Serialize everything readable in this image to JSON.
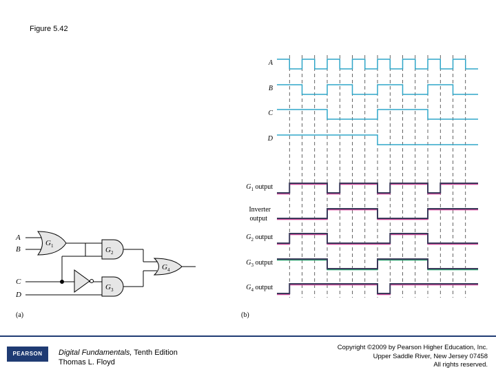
{
  "figure": {
    "title": "Figure 5.42"
  },
  "circuit": {
    "panel_label": "(a)",
    "inputs": [
      "A",
      "B",
      "C",
      "D"
    ],
    "gates": [
      "G",
      "G",
      "G",
      "G"
    ],
    "gate_subs": [
      "1",
      "2",
      "3",
      "4"
    ]
  },
  "timing": {
    "panel_label": "(b)",
    "inputs": [
      "A",
      "B",
      "C",
      "D"
    ],
    "outputs": [
      {
        "pre": "G",
        "sub": "1",
        "post": " output"
      },
      {
        "pre": "Inverter",
        "sub": "",
        "post": ""
      },
      {
        "pre": "G",
        "sub": "2",
        "post": " output"
      },
      {
        "pre": "G",
        "sub": "3",
        "post": " output"
      },
      {
        "pre": "G",
        "sub": "4",
        "post": " output"
      }
    ],
    "inverter_line2": "output",
    "num_periods": 16,
    "waveforms": {
      "A": [
        1,
        0,
        1,
        0,
        1,
        0,
        1,
        0,
        1,
        0,
        1,
        0,
        1,
        0,
        1,
        0
      ],
      "B": [
        1,
        1,
        0,
        0,
        1,
        1,
        0,
        0,
        1,
        1,
        0,
        0,
        1,
        1,
        0,
        0
      ],
      "C": [
        1,
        1,
        1,
        1,
        0,
        0,
        0,
        0,
        1,
        1,
        1,
        1,
        0,
        0,
        0,
        0
      ],
      "D": [
        1,
        1,
        1,
        1,
        1,
        1,
        1,
        1,
        0,
        0,
        0,
        0,
        0,
        0,
        0,
        0
      ],
      "G1": [
        0,
        1,
        1,
        1,
        0,
        1,
        1,
        1,
        0,
        1,
        1,
        1,
        0,
        1,
        1,
        1
      ],
      "INV": [
        0,
        0,
        0,
        0,
        1,
        1,
        1,
        1,
        0,
        0,
        0,
        0,
        1,
        1,
        1,
        1
      ],
      "G2": [
        0,
        1,
        1,
        1,
        0,
        0,
        0,
        0,
        0,
        1,
        1,
        1,
        0,
        0,
        0,
        0
      ],
      "G3": [
        1,
        1,
        1,
        1,
        0,
        0,
        0,
        0,
        1,
        1,
        1,
        1,
        0,
        0,
        0,
        0
      ],
      "G4": [
        0,
        1,
        1,
        1,
        1,
        1,
        1,
        1,
        0,
        1,
        1,
        1,
        1,
        1,
        1,
        1
      ]
    },
    "colors": {
      "input": "#2fa6c8",
      "output_dark": "#3a3a5a",
      "output_pink": "#d04a9c",
      "output_green": "#2fa070",
      "gate_fill": "#e6e6e6"
    }
  },
  "footer": {
    "book_title": "Digital Fundamentals,",
    "edition": " Tenth Edition",
    "author": "Thomas L. Floyd",
    "copyright1": "Copyright ©2009 by Pearson Higher Education, Inc.",
    "copyright2": "Upper Saddle River, New Jersey 07458",
    "copyright3": "All rights reserved.",
    "logo_text": "PEARSON"
  }
}
